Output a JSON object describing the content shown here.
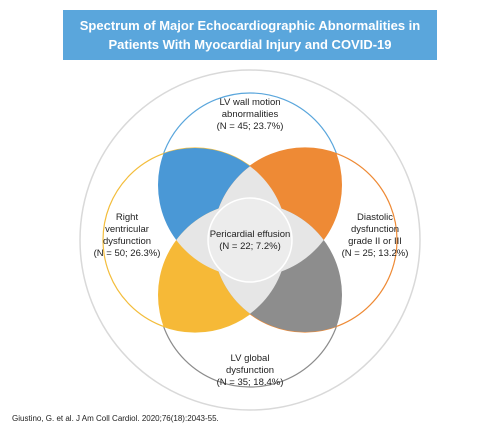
{
  "title": {
    "line1": "Spectrum of Major Echocardiographic Abnormalities in",
    "line2": "Patients With Myocardial Injury and COVID-19"
  },
  "regions": {
    "top": {
      "line1": "LV wall motion",
      "line2": "abnormalities",
      "line3": "(N = 45; 23.7%)",
      "border_color": "#5aa6dc"
    },
    "left": {
      "line1": "Right",
      "line2": "ventricular",
      "line3": "dysfunction",
      "line4": "(N = 50; 26.3%)",
      "border_color": "#f3bd3c"
    },
    "right": {
      "line1": "Diastolic",
      "line2": "dysfunction",
      "line3": "grade II or III",
      "line4": "(N = 25; 13.2%)",
      "border_color": "#ee8a35"
    },
    "bottom": {
      "line1": "LV global",
      "line2": "dysfunction",
      "line3": "(N = 35; 18.4%)",
      "border_color": "#8c8c8c"
    },
    "center": {
      "line1": "Pericardial effusion",
      "line2": "(N = 22; 7.2%)"
    }
  },
  "petal_colors": {
    "top_left": "#4a98d6",
    "top_right": "#ee8a35",
    "bottom_left": "#f6b937",
    "bottom_right": "#8d8d8d",
    "outer_circle": "#d9d9d9",
    "center_circle": "#ececec"
  },
  "citation": "Giustino, G. et al. J Am Coll Cardiol. 2020;76(18):2043-55."
}
